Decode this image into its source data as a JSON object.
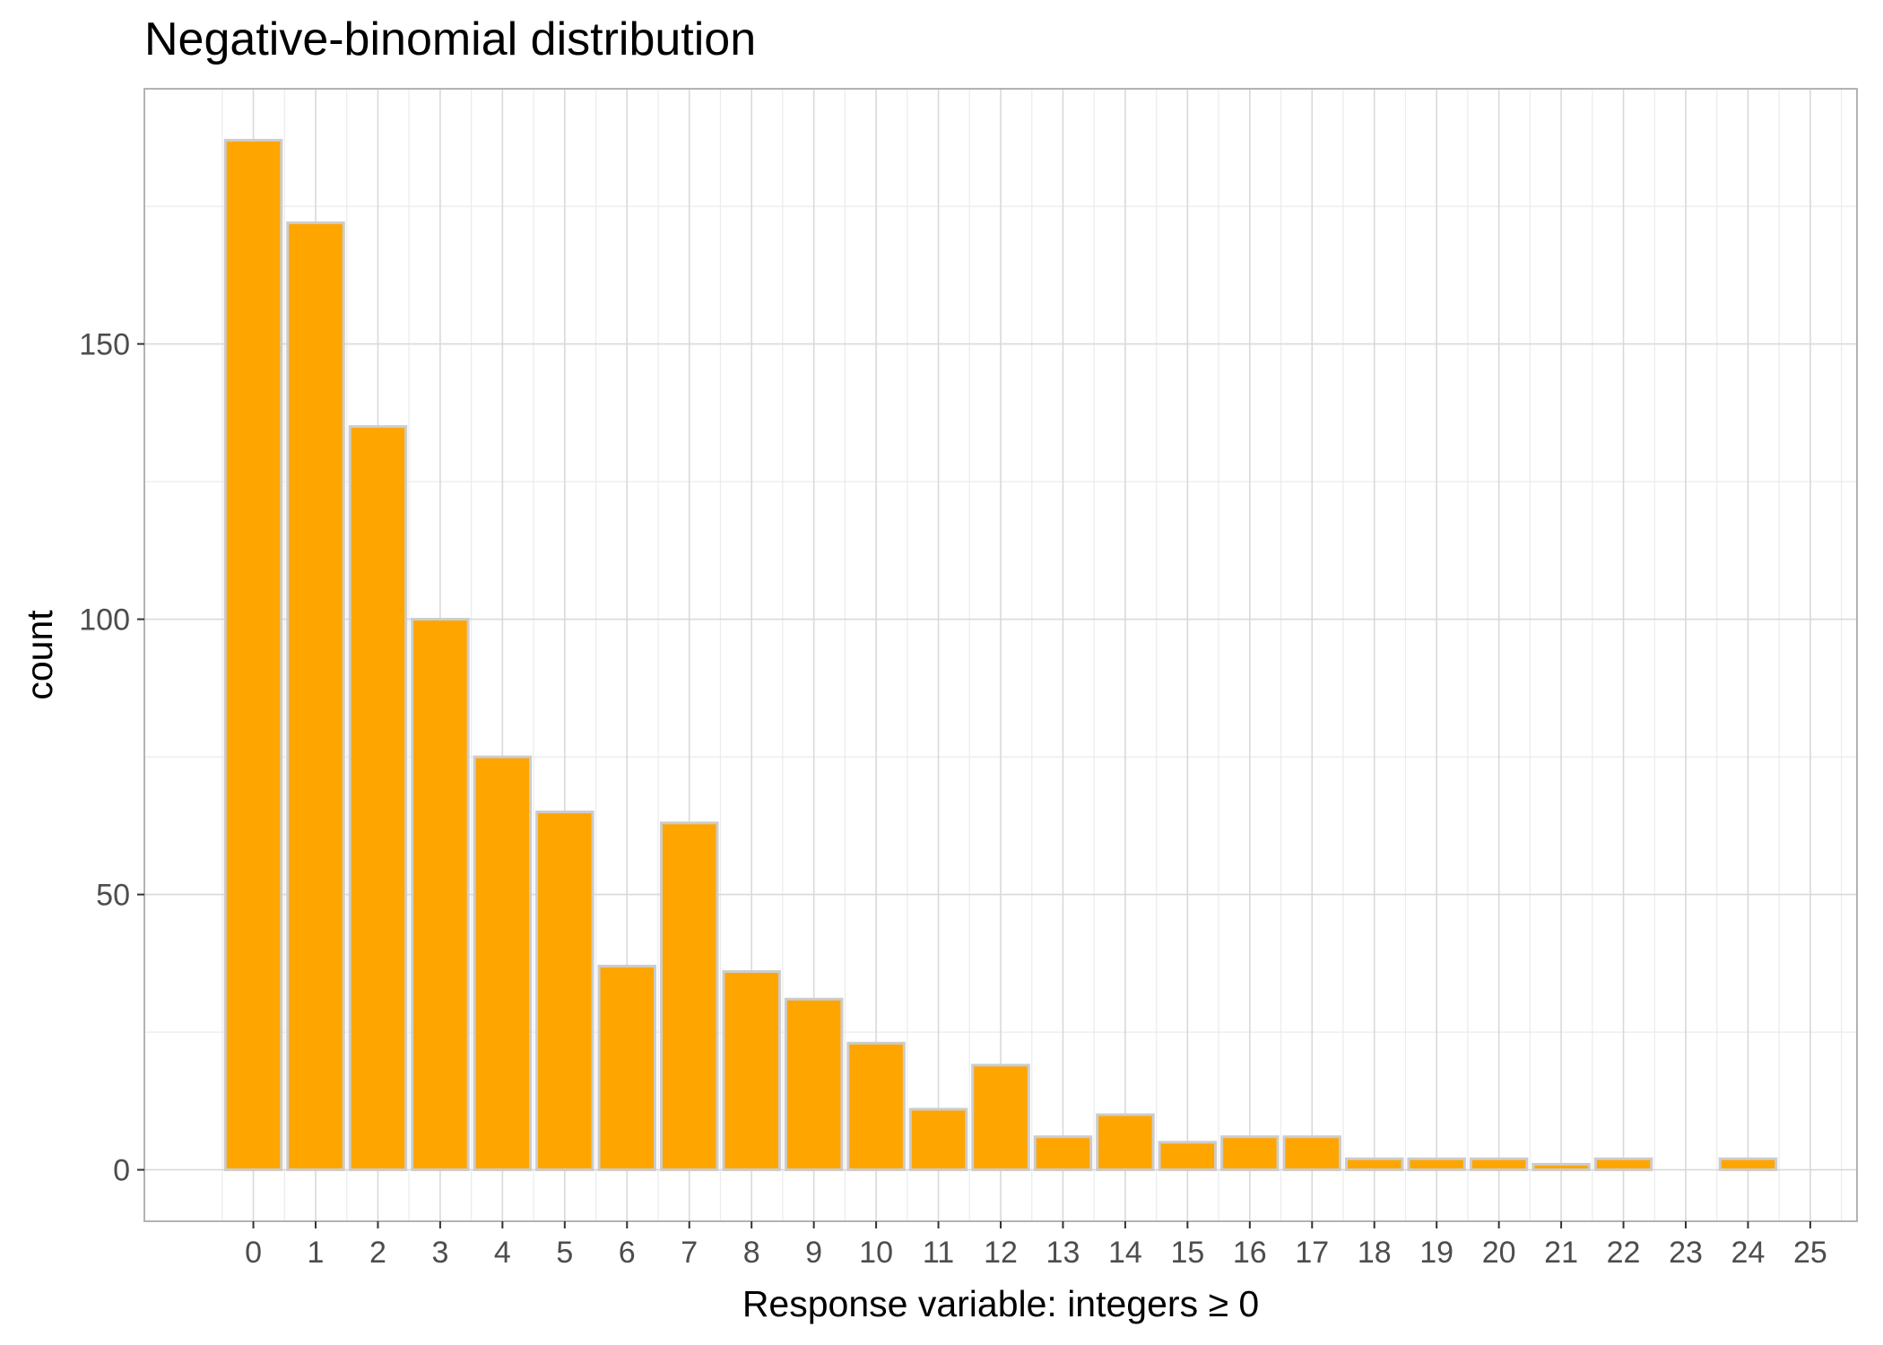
{
  "chart_data": {
    "type": "bar",
    "title": "Negative-binomial distribution",
    "xlabel": "Response variable: integers ≥ 0",
    "ylabel": "count",
    "categories": [
      "0",
      "1",
      "2",
      "3",
      "4",
      "5",
      "6",
      "7",
      "8",
      "9",
      "10",
      "11",
      "12",
      "13",
      "14",
      "15",
      "16",
      "17",
      "18",
      "19",
      "20",
      "21",
      "22",
      "23",
      "24",
      "25"
    ],
    "values": [
      187,
      172,
      135,
      100,
      75,
      65,
      37,
      63,
      36,
      31,
      23,
      11,
      19,
      6,
      10,
      5,
      6,
      6,
      2,
      2,
      2,
      1,
      2,
      0,
      2,
      0
    ],
    "yticks": [
      0,
      50,
      100,
      150
    ],
    "ylim": [
      -9.35,
      196.35
    ],
    "xlim": [
      -1.75,
      25.75
    ],
    "grid": true,
    "bar_fill": "#FFA500",
    "bar_stroke": "#CCCCCC",
    "panel_border": "#B3B3B3",
    "grid_major_color": "#D9D9D9",
    "grid_minor_color": "#EBEBEB"
  }
}
